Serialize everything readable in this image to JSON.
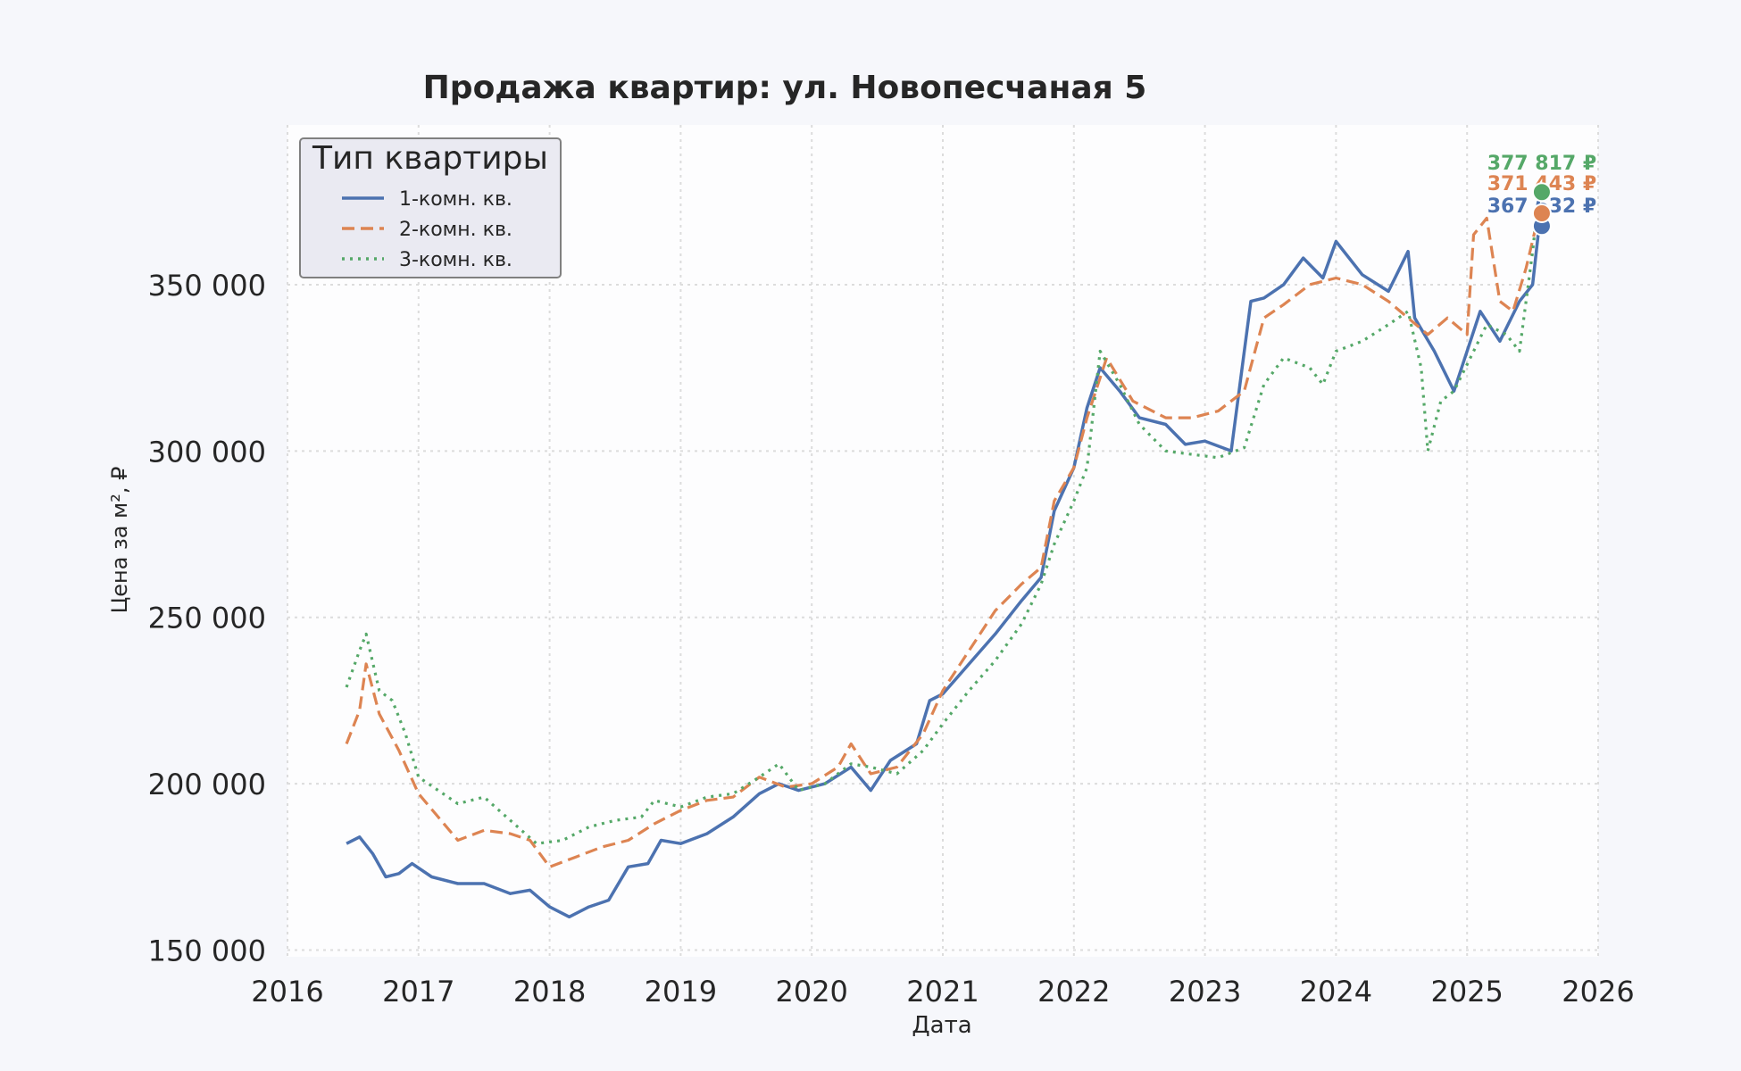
{
  "chart_data": {
    "type": "line",
    "title": "Продажа квартир: ул. Новопесчаная 5",
    "xlabel": "Дата",
    "ylabel": "Цена за м², ₽",
    "xlim": [
      2016.0,
      2026.0
    ],
    "ylim": [
      148000,
      398000
    ],
    "x_ticks": [
      2016,
      2017,
      2018,
      2019,
      2020,
      2021,
      2022,
      2023,
      2024,
      2025,
      2026
    ],
    "x_tick_labels": [
      "2016",
      "2017",
      "2018",
      "2019",
      "2020",
      "2021",
      "2022",
      "2023",
      "2024",
      "2025",
      "2026"
    ],
    "y_ticks": [
      150000,
      200000,
      250000,
      300000,
      350000
    ],
    "y_tick_labels": [
      "150 000",
      "200 000",
      "250 000",
      "300 000",
      "350 000"
    ],
    "grid": true,
    "legend_title": "Тип квартиры",
    "legend_position": "top-left",
    "colors": {
      "background": "#f6f7fb",
      "plot_area": "#fdfdfe",
      "grid": "#dcdcdc",
      "text": "#262626"
    },
    "series": [
      {
        "name": "1-комн. кв.",
        "color": "#4c72b0",
        "dash": "solid",
        "last_label": "367 632 ₽",
        "last_value": 367632,
        "x": [
          2016.45,
          2016.55,
          2016.65,
          2016.75,
          2016.85,
          2016.95,
          2017.1,
          2017.3,
          2017.5,
          2017.7,
          2017.85,
          2018.0,
          2018.15,
          2018.3,
          2018.45,
          2018.6,
          2018.75,
          2018.85,
          2019.0,
          2019.2,
          2019.4,
          2019.6,
          2019.75,
          2019.9,
          2020.1,
          2020.3,
          2020.45,
          2020.6,
          2020.8,
          2020.9,
          2021.0,
          2021.2,
          2021.4,
          2021.6,
          2021.75,
          2021.85,
          2022.0,
          2022.1,
          2022.2,
          2022.35,
          2022.5,
          2022.7,
          2022.85,
          2023.0,
          2023.2,
          2023.35,
          2023.45,
          2023.6,
          2023.75,
          2023.9,
          2024.0,
          2024.2,
          2024.4,
          2024.55,
          2024.6,
          2024.75,
          2024.9,
          2025.0,
          2025.1,
          2025.25,
          2025.4,
          2025.5,
          2025.55
        ],
        "y": [
          182000,
          184000,
          179000,
          172000,
          173000,
          176000,
          172000,
          170000,
          170000,
          167000,
          168000,
          163000,
          160000,
          163000,
          165000,
          175000,
          176000,
          183000,
          182000,
          185000,
          190000,
          197000,
          200000,
          198000,
          200000,
          205000,
          198000,
          207000,
          212000,
          225000,
          227000,
          236000,
          245000,
          255000,
          262000,
          282000,
          295000,
          313000,
          325000,
          318000,
          310000,
          308000,
          302000,
          303000,
          300000,
          345000,
          346000,
          350000,
          358000,
          352000,
          363000,
          353000,
          348000,
          360000,
          340000,
          330000,
          318000,
          330000,
          342000,
          333000,
          345000,
          350000,
          367632
        ]
      },
      {
        "name": "2-комн. кв.",
        "color": "#dd8452",
        "dash": "dashed",
        "last_label": "371 443 ₽",
        "last_value": 371443,
        "x": [
          2016.45,
          2016.55,
          2016.6,
          2016.7,
          2016.85,
          2017.0,
          2017.15,
          2017.3,
          2017.5,
          2017.7,
          2017.85,
          2018.0,
          2018.2,
          2018.4,
          2018.6,
          2018.8,
          2019.0,
          2019.2,
          2019.4,
          2019.6,
          2019.8,
          2020.0,
          2020.2,
          2020.3,
          2020.45,
          2020.65,
          2020.85,
          2021.0,
          2021.2,
          2021.4,
          2021.6,
          2021.75,
          2021.85,
          2022.0,
          2022.1,
          2022.25,
          2022.45,
          2022.7,
          2022.9,
          2023.1,
          2023.3,
          2023.45,
          2023.6,
          2023.8,
          2024.0,
          2024.2,
          2024.4,
          2024.55,
          2024.7,
          2024.85,
          2025.0,
          2025.05,
          2025.15,
          2025.25,
          2025.35,
          2025.45,
          2025.55
        ],
        "y": [
          212000,
          222000,
          236000,
          221000,
          210000,
          197000,
          190000,
          183000,
          186000,
          185000,
          183000,
          175000,
          178000,
          181000,
          183000,
          188000,
          192000,
          195000,
          196000,
          202000,
          199000,
          200000,
          205000,
          212000,
          203000,
          205000,
          215000,
          228000,
          240000,
          252000,
          260000,
          265000,
          285000,
          295000,
          310000,
          328000,
          315000,
          310000,
          310000,
          312000,
          318000,
          340000,
          344000,
          350000,
          352000,
          350000,
          345000,
          340000,
          335000,
          340000,
          335000,
          365000,
          370000,
          345000,
          342000,
          355000,
          371443
        ]
      },
      {
        "name": "3-комн. кв.",
        "color": "#55a868",
        "dash": "dotted",
        "last_label": "377 817 ₽",
        "last_value": 377817,
        "x": [
          2016.45,
          2016.55,
          2016.6,
          2016.7,
          2016.8,
          2016.9,
          2017.0,
          2017.15,
          2017.3,
          2017.5,
          2017.7,
          2017.9,
          2018.1,
          2018.3,
          2018.5,
          2018.7,
          2018.8,
          2019.0,
          2019.2,
          2019.4,
          2019.6,
          2019.75,
          2019.9,
          2020.1,
          2020.3,
          2020.45,
          2020.65,
          2020.85,
          2021.0,
          2021.2,
          2021.4,
          2021.6,
          2021.75,
          2021.85,
          2022.0,
          2022.1,
          2022.2,
          2022.35,
          2022.5,
          2022.7,
          2022.9,
          2023.1,
          2023.3,
          2023.45,
          2023.6,
          2023.8,
          2023.9,
          2024.0,
          2024.2,
          2024.4,
          2024.55,
          2024.65,
          2024.7,
          2024.8,
          2024.9,
          2025.0,
          2025.15,
          2025.3,
          2025.4,
          2025.5,
          2025.55
        ],
        "y": [
          229000,
          240000,
          245000,
          228000,
          225000,
          215000,
          202000,
          198000,
          194000,
          196000,
          189000,
          182000,
          183000,
          187000,
          189000,
          190000,
          195000,
          193000,
          196000,
          197000,
          202000,
          206000,
          198000,
          200000,
          206000,
          205000,
          203000,
          210000,
          218000,
          228000,
          237000,
          248000,
          260000,
          272000,
          285000,
          295000,
          330000,
          320000,
          308000,
          300000,
          299000,
          298000,
          301000,
          320000,
          328000,
          325000,
          320000,
          330000,
          333000,
          338000,
          342000,
          325000,
          300000,
          315000,
          318000,
          326000,
          338000,
          335000,
          330000,
          360000,
          377817
        ]
      }
    ]
  }
}
